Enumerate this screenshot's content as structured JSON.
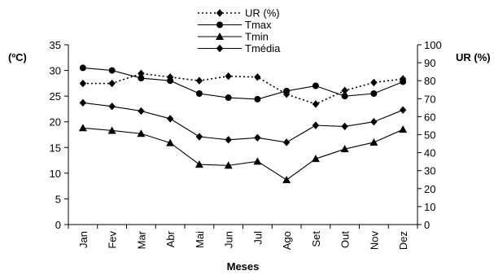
{
  "chart_data": {
    "type": "line",
    "xlabel": "Meses",
    "ylabel_left": "(ºC)",
    "ylabel_right": "UR (%)",
    "categories": [
      "Jan",
      "Fev",
      "Mar",
      "Abr",
      "Mai",
      "Jun",
      "Jul",
      "Ago",
      "Set",
      "Out",
      "Nov",
      "Dez"
    ],
    "ylim_left": [
      0,
      35
    ],
    "yticks_left": [
      "0",
      "5",
      "10",
      "15",
      "20",
      "25",
      "30",
      "35"
    ],
    "ylim_right": [
      0,
      100
    ],
    "yticks_right": [
      "0",
      "10",
      "20",
      "30",
      "40",
      "50",
      "60",
      "70",
      "80",
      "90",
      "100"
    ],
    "grid": false,
    "legend_position": "top-center",
    "series": [
      {
        "name": "UR (%)",
        "axis": "right",
        "style": "dotted",
        "marker": "diamond",
        "values": [
          78.5,
          78.5,
          84,
          82,
          80,
          82.5,
          82,
          72.5,
          67,
          74.5,
          79,
          81
        ]
      },
      {
        "name": "Tmax",
        "axis": "left",
        "style": "solid",
        "marker": "circle",
        "values": [
          30.5,
          30.0,
          28.5,
          28.0,
          25.5,
          24.7,
          24.4,
          26.0,
          27.0,
          25.0,
          25.5,
          27.8
        ]
      },
      {
        "name": "Tmin",
        "axis": "left",
        "style": "solid",
        "marker": "triangle",
        "values": [
          18.8,
          18.3,
          17.7,
          15.9,
          11.7,
          11.5,
          12.3,
          8.7,
          12.8,
          14.7,
          16.0,
          18.5
        ]
      },
      {
        "name": "Tmédia",
        "axis": "left",
        "style": "solid",
        "marker": "diamond",
        "values": [
          23.7,
          23.0,
          22.1,
          20.6,
          17.1,
          16.5,
          16.9,
          16.0,
          19.3,
          19.1,
          20.0,
          22.3
        ]
      }
    ]
  }
}
